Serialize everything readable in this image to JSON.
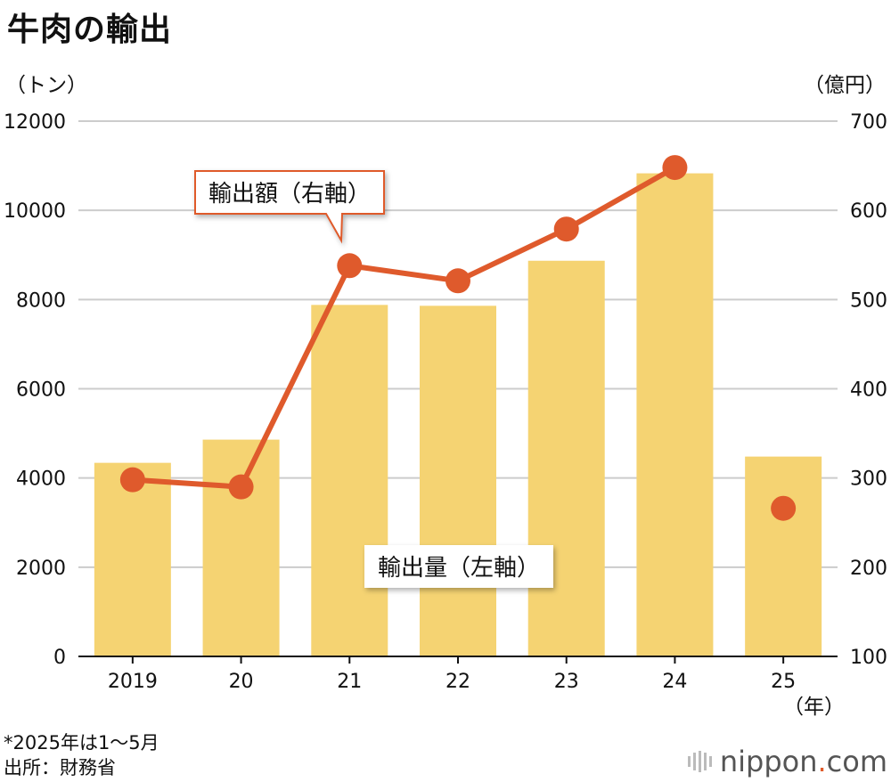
{
  "title": "牛肉の輸出",
  "units": {
    "left": "（トン）",
    "right": "（億円）",
    "x": "（年）"
  },
  "notes": {
    "note1": "*2025年は1～5月",
    "note2": "出所：財務省"
  },
  "logo": {
    "name": "nippon",
    "dot": ".",
    "tld": "com"
  },
  "colors": {
    "bar": "#f5d372",
    "line": "#df5a2c",
    "grid": "#cccccc",
    "callout_border": "#df5a2c",
    "logo_dot": "#e05a2a"
  },
  "chart_data": {
    "type": "bar+line",
    "categories": [
      "2019",
      "20",
      "21",
      "22",
      "23",
      "24",
      "25"
    ],
    "left_axis": {
      "ticks": [
        "12000",
        "10000",
        "8000",
        "6000",
        "4000",
        "2000",
        "0"
      ],
      "ylim": [
        0,
        12000
      ]
    },
    "right_axis": {
      "ticks": [
        "700",
        "600",
        "500",
        "400",
        "300",
        "200",
        "100"
      ],
      "ylim": [
        100,
        700
      ]
    },
    "series": [
      {
        "name": "輸出量（左軸）",
        "type": "bar",
        "axis": "left",
        "values": [
          4340,
          4860,
          7880,
          7860,
          8870,
          10830,
          4480
        ]
      },
      {
        "name": "輸出額（右軸）",
        "type": "line",
        "axis": "right",
        "values": [
          298,
          290,
          538,
          521,
          579,
          648,
          266
        ],
        "line_breaks_after_index": 5
      }
    ],
    "grid": true
  }
}
